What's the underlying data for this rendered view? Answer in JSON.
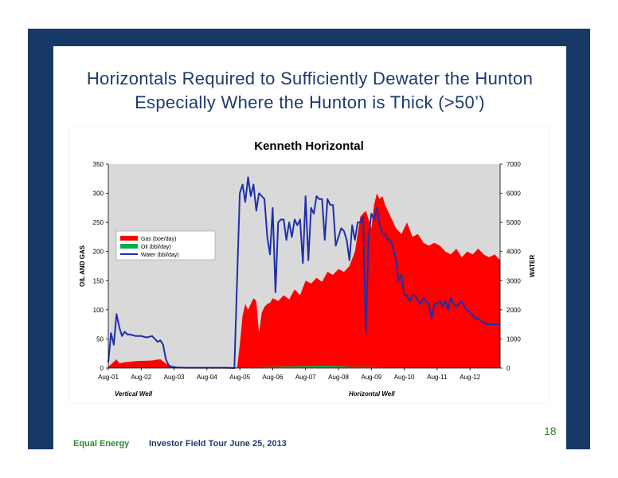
{
  "slide": {
    "title_line1": "Horizontals Required to Sufficiently Dewater the Hunton",
    "title_line2": "Especially Where the Hunton is Thick (>50’)",
    "page_number": "18",
    "footer_company": "Equal Energy",
    "footer_event": "Investor Field Tour June 25, 2013"
  },
  "colors": {
    "frame": "#173968",
    "title": "#1f3a6e",
    "footer_green": "#2e8b2e",
    "gas": "#ff0000",
    "oil": "#00b050",
    "water": "#1f2fa8",
    "plot_bg": "#d9d9d9"
  },
  "chart_data": {
    "type": "area",
    "title": "Kenneth Horizontal",
    "ylabel": "OIL AND GAS",
    "y2label": "WATER",
    "ylim": [
      0,
      350
    ],
    "y2lim": [
      0,
      7000
    ],
    "yticks": [
      "0",
      "50",
      "100",
      "150",
      "200",
      "250",
      "300",
      "350"
    ],
    "y2ticks": [
      "0",
      "1000",
      "2000",
      "3000",
      "4000",
      "5000",
      "6000",
      "7000"
    ],
    "x_range": [
      "2001-08",
      "2013-07"
    ],
    "xtick_labels": [
      "Aug-01",
      "Aug-02",
      "Aug-03",
      "Aug-04",
      "Aug-05",
      "Aug-06",
      "Aug-07",
      "Aug-08",
      "Aug-09",
      "Aug-10",
      "Aug-11",
      "Aug-12"
    ],
    "grid": false,
    "legend_position": "left-middle",
    "annotations": [
      "Vertical Well",
      "Horizontal Well"
    ],
    "series": [
      {
        "name": "Gas (boe/day)",
        "type": "area",
        "axis": "left",
        "x": [
          "2001-08",
          "2001-11",
          "2001-12",
          "2002-02",
          "2002-06",
          "2002-12",
          "2003-01",
          "2003-03",
          "2003-07",
          "2005-07",
          "2005-08",
          "2005-09",
          "2005-10",
          "2005-11",
          "2006-01",
          "2006-02",
          "2006-03",
          "2006-04",
          "2006-05",
          "2006-06",
          "2006-07",
          "2006-08",
          "2006-10",
          "2006-12",
          "2007-02",
          "2007-04",
          "2007-06",
          "2007-08",
          "2007-10",
          "2007-12",
          "2008-02",
          "2008-04",
          "2008-06",
          "2008-08",
          "2008-10",
          "2008-12",
          "2009-02",
          "2009-04",
          "2009-06",
          "2009-08",
          "2009-09",
          "2009-10",
          "2009-11",
          "2009-12",
          "2010-01",
          "2010-03",
          "2010-05",
          "2010-07",
          "2010-09",
          "2010-11",
          "2011-01",
          "2011-03",
          "2011-05",
          "2011-07",
          "2011-09",
          "2011-11",
          "2012-01",
          "2012-03",
          "2012-05",
          "2012-07",
          "2012-09",
          "2012-11",
          "2013-01",
          "2013-03",
          "2013-05",
          "2013-07"
        ],
        "values": [
          2,
          15,
          8,
          10,
          12,
          13,
          14,
          15,
          1,
          0,
          40,
          90,
          110,
          100,
          120,
          115,
          60,
          95,
          105,
          110,
          112,
          120,
          115,
          125,
          118,
          135,
          125,
          150,
          145,
          155,
          148,
          165,
          160,
          170,
          165,
          175,
          200,
          260,
          270,
          240,
          280,
          300,
          290,
          295,
          280,
          260,
          240,
          230,
          250,
          225,
          230,
          215,
          210,
          215,
          210,
          200,
          195,
          205,
          190,
          200,
          195,
          205,
          195,
          190,
          195,
          185
        ]
      },
      {
        "name": "Oil (bbl/day)",
        "type": "area",
        "axis": "left",
        "x": [
          "2001-08",
          "2003-07",
          "2005-08",
          "2006-06",
          "2007-06",
          "2008-03",
          "2008-09",
          "2009-01",
          "2009-07",
          "2010-01",
          "2011-01",
          "2012-01",
          "2013-07"
        ],
        "values": [
          0,
          0,
          1,
          2,
          3,
          4,
          3,
          2,
          2,
          1,
          1,
          1,
          1
        ]
      },
      {
        "name": "Water (bbl/day)",
        "type": "line",
        "axis": "right",
        "x": [
          "2001-08",
          "2001-09",
          "2001-10",
          "2001-11",
          "2001-12",
          "2002-01",
          "2002-02",
          "2002-03",
          "2002-04",
          "2002-06",
          "2002-08",
          "2002-10",
          "2002-12",
          "2003-01",
          "2003-02",
          "2003-03",
          "2003-04",
          "2003-05",
          "2003-06",
          "2003-07",
          "2003-09",
          "2003-12",
          "2004-03",
          "2004-06",
          "2004-09",
          "2004-12",
          "2005-03",
          "2005-06",
          "2005-08",
          "2005-09",
          "2005-10",
          "2005-11",
          "2005-12",
          "2006-01",
          "2006-02",
          "2006-03",
          "2006-04",
          "2006-05",
          "2006-06",
          "2006-07",
          "2006-08",
          "2006-09",
          "2006-10",
          "2006-11",
          "2006-12",
          "2007-01",
          "2007-02",
          "2007-03",
          "2007-04",
          "2007-05",
          "2007-06",
          "2007-07",
          "2007-08",
          "2007-09",
          "2007-10",
          "2007-11",
          "2007-12",
          "2008-01",
          "2008-02",
          "2008-03",
          "2008-04",
          "2008-05",
          "2008-06",
          "2008-07",
          "2008-08",
          "2008-09",
          "2008-10",
          "2008-11",
          "2008-12",
          "2009-01",
          "2009-02",
          "2009-03",
          "2009-04",
          "2009-05",
          "2009-06",
          "2009-07",
          "2009-08",
          "2009-09",
          "2009-10",
          "2009-11",
          "2009-12",
          "2010-01",
          "2010-02",
          "2010-03",
          "2010-04",
          "2010-05",
          "2010-06",
          "2010-07",
          "2010-08",
          "2010-09",
          "2010-10",
          "2010-11",
          "2010-12",
          "2011-01",
          "2011-02",
          "2011-03",
          "2011-04",
          "2011-05",
          "2011-06",
          "2011-07",
          "2011-08",
          "2011-09",
          "2011-10",
          "2011-11",
          "2011-12",
          "2012-01",
          "2012-02",
          "2012-03",
          "2012-04",
          "2012-05",
          "2012-06",
          "2012-07",
          "2012-08",
          "2012-09",
          "2012-10",
          "2012-11",
          "2012-12",
          "2013-01",
          "2013-02",
          "2013-03",
          "2013-04",
          "2013-05",
          "2013-06",
          "2013-07"
        ],
        "values": [
          200,
          1200,
          800,
          1850,
          1400,
          1100,
          1250,
          1150,
          1150,
          1100,
          1100,
          1050,
          1100,
          1000,
          900,
          950,
          800,
          300,
          100,
          50,
          20,
          10,
          10,
          10,
          10,
          10,
          10,
          0,
          6000,
          6300,
          5700,
          6550,
          5900,
          6300,
          5400,
          6000,
          5900,
          5800,
          4500,
          3900,
          5500,
          2600,
          5000,
          5100,
          5100,
          4400,
          5000,
          4500,
          5100,
          4900,
          5100,
          3600,
          5900,
          3700,
          5500,
          5300,
          5900,
          5800,
          5800,
          4400,
          5800,
          5600,
          5600,
          4200,
          4500,
          4800,
          4700,
          4400,
          3700,
          4900,
          4400,
          5000,
          5000,
          5200,
          1200,
          4500,
          5300,
          5100,
          5500,
          4900,
          4600,
          4600,
          4400,
          4400,
          4100,
          3700,
          3000,
          3200,
          2500,
          2500,
          2300,
          2500,
          2500,
          2300,
          2200,
          2400,
          2300,
          2200,
          1700,
          2200,
          2200,
          2300,
          2100,
          2300,
          2000,
          2400,
          2200,
          2100,
          2200,
          2300,
          2100,
          2000,
          1900,
          1800,
          1700,
          1700,
          1600,
          1600,
          1500,
          1500,
          1500,
          1500,
          1500,
          1500
        ]
      }
    ]
  }
}
